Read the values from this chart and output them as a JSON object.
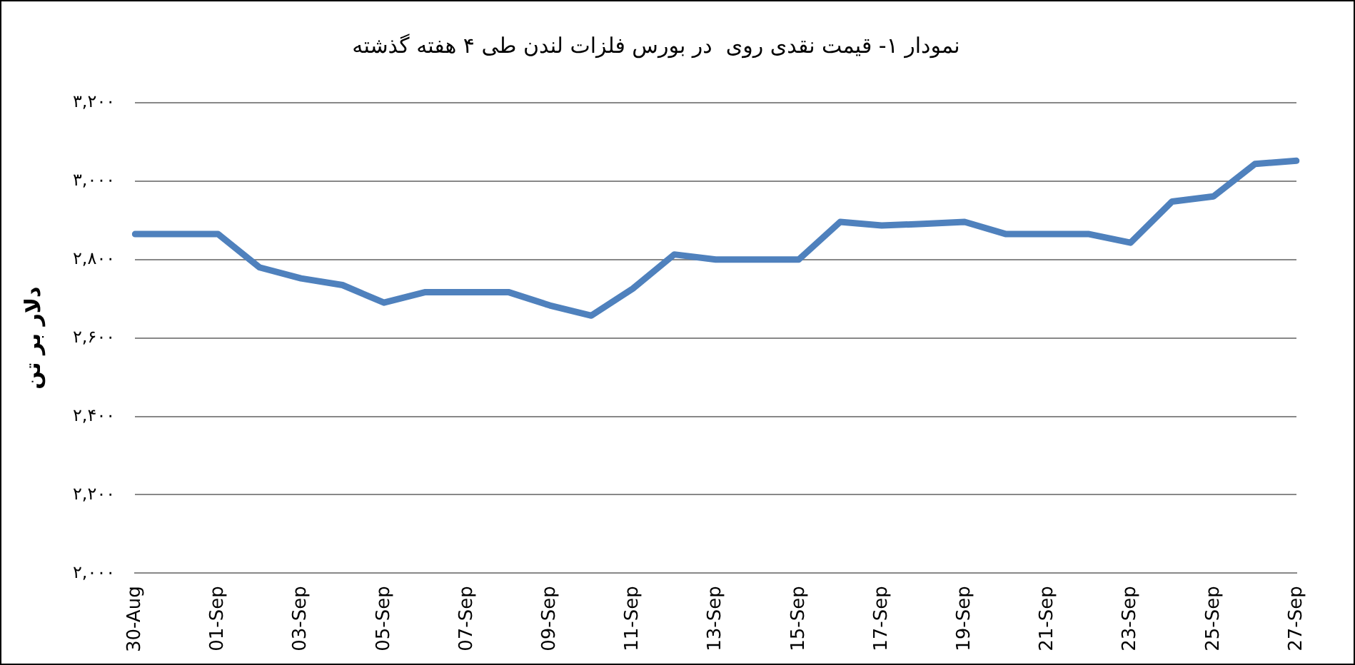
{
  "chart_data": {
    "type": "line",
    "title": "نمودار ۱- قیمت نقدی روی  در بورس فلزات لندن طی ۴ هفته گذشته",
    "ylabel": "دلار بر تن",
    "categories": [
      "30-Aug",
      null,
      "01-Sep",
      null,
      "03-Sep",
      null,
      "05-Sep",
      null,
      "07-Sep",
      null,
      "09-Sep",
      null,
      "11-Sep",
      null,
      "13-Sep",
      null,
      "15-Sep",
      null,
      "17-Sep",
      null,
      "19-Sep",
      null,
      "21-Sep",
      null,
      "23-Sep",
      null,
      "25-Sep",
      null,
      "27-Sep"
    ],
    "series": [
      {
        "color": "#4f81bd",
        "values": [
          2865,
          2865,
          2865,
          2780,
          2752,
          2735,
          2690,
          2717,
          2717,
          2717,
          2683,
          2657,
          2726,
          2813,
          2800,
          2800,
          2800,
          2896,
          2887,
          2891,
          2896,
          2865,
          2865,
          2865,
          2843,
          2948,
          2961,
          3044,
          3052
        ]
      }
    ],
    "ylim": [
      2000,
      3200
    ],
    "yticks": [
      {
        "value": 2000,
        "label": "۲,۰۰۰"
      },
      {
        "value": 2200,
        "label": "۲,۲۰۰"
      },
      {
        "value": 2400,
        "label": "۲,۴۰۰"
      },
      {
        "value": 2600,
        "label": "۲,۶۰۰"
      },
      {
        "value": 2800,
        "label": "۲,۸۰۰"
      },
      {
        "value": 3000,
        "label": "۳,۰۰۰"
      },
      {
        "value": 3200,
        "label": "۳,۲۰۰"
      }
    ],
    "grid": "y",
    "legend": false,
    "marker": "none",
    "line_style": "solid"
  }
}
